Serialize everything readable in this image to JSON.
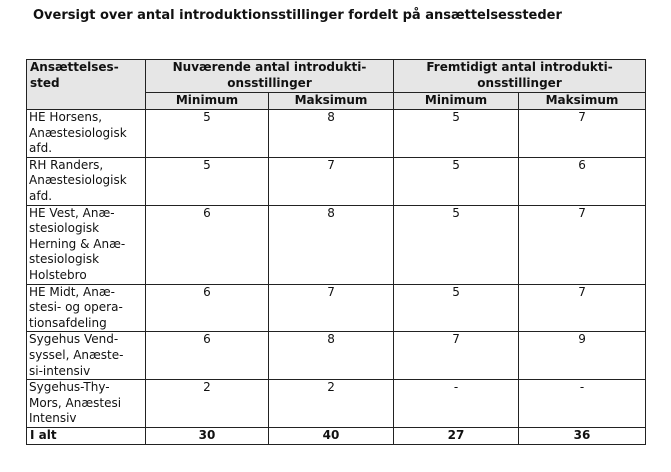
{
  "title": "Oversigt over antal introduktionsstillinger fordelt på ansættelsessteder",
  "table": {
    "header": {
      "place": "Ansættelses-\nsted",
      "current": "Nuværende antal introdukti-\nonsstillinger",
      "future": "Fremtidigt antal introdukti-\nonsstillinger",
      "min": "Minimum",
      "max": "Maksimum"
    },
    "rows": [
      {
        "place": "HE Horsens,\nAnæstesiologisk\nafd.",
        "cur_min": "5",
        "cur_max": "8",
        "fut_min": "5",
        "fut_max": "7"
      },
      {
        "place": "RH Randers,\nAnæstesiologisk\nafd.",
        "cur_min": "5",
        "cur_max": "7",
        "fut_min": "5",
        "fut_max": "6"
      },
      {
        "place": "HE Vest, Anæ-\nstesiologisk\nHerning & Anæ-\nstesiologisk\nHolstebro",
        "cur_min": "6",
        "cur_max": "8",
        "fut_min": "5",
        "fut_max": "7"
      },
      {
        "place": "HE Midt, Anæ-\nstesi- og opera-\ntionsafdeling",
        "cur_min": "6",
        "cur_max": "7",
        "fut_min": "5",
        "fut_max": "7"
      },
      {
        "place": "Sygehus Vend-\nsyssel, Anæste-\nsi-intensiv",
        "cur_min": "6",
        "cur_max": "8",
        "fut_min": "7",
        "fut_max": "9"
      },
      {
        "place": "Sygehus-Thy-\nMors, Anæstesi\nIntensiv",
        "cur_min": "2",
        "cur_max": "2",
        "fut_min": "-",
        "fut_max": "-"
      }
    ],
    "total": {
      "place": "I alt",
      "cur_min": "30",
      "cur_max": "40",
      "fut_min": "27",
      "fut_max": "36"
    }
  }
}
